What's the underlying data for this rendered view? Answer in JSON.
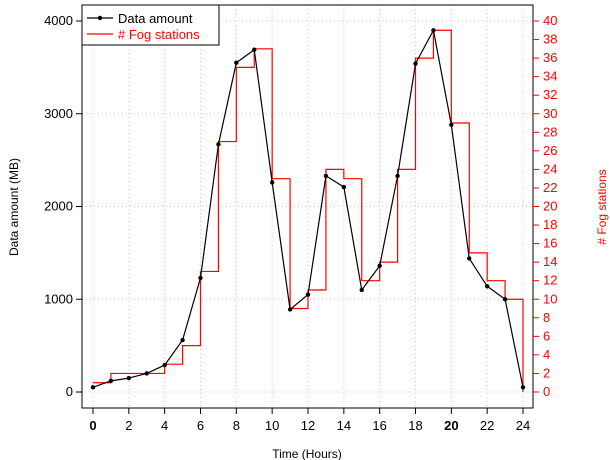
{
  "chart_data": {
    "type": "line",
    "xlabel": "Time (Hours)",
    "ylabel": "Data amount (MB)",
    "y2label": "# Fog stations",
    "xlim": [
      0,
      24
    ],
    "ylim": [
      0,
      4000
    ],
    "y2lim": [
      0,
      40
    ],
    "x_ticks": [
      "0",
      "2",
      "4",
      "6",
      "8",
      "10",
      "12",
      "14",
      "16",
      "18",
      "20",
      "22",
      "24"
    ],
    "x_ticks_bold": [
      "0",
      "20"
    ],
    "y_ticks": [
      "0",
      "1000",
      "2000",
      "3000",
      "4000"
    ],
    "y2_ticks": [
      "0",
      "2",
      "4",
      "6",
      "8",
      "10",
      "12",
      "14",
      "16",
      "18",
      "20",
      "22",
      "24",
      "26",
      "28",
      "30",
      "32",
      "34",
      "36",
      "38",
      "40"
    ],
    "grid": true,
    "legend_position": "top-left",
    "colors": {
      "data_amount": "#000000",
      "fog_stations": "#ff0000",
      "grid": "#c8c8c8"
    },
    "series": [
      {
        "name": "Data amount",
        "axis": "left",
        "style": "line-with-points",
        "x": [
          0,
          1,
          2,
          3,
          4,
          5,
          6,
          7,
          8,
          9,
          10,
          11,
          12,
          13,
          14,
          15,
          16,
          17,
          18,
          19,
          20,
          21,
          22,
          23,
          24
        ],
        "values": [
          50,
          120,
          150,
          200,
          290,
          560,
          1230,
          2670,
          3550,
          3690,
          2260,
          890,
          1050,
          2330,
          2210,
          1100,
          1360,
          2330,
          3540,
          3900,
          2880,
          1440,
          1140,
          1000,
          50
        ]
      },
      {
        "name": "# Fog stations",
        "axis": "right",
        "style": "step",
        "x_start": [
          0,
          1,
          2,
          3,
          4,
          5,
          6,
          7,
          8,
          9,
          10,
          11,
          12,
          13,
          14,
          15,
          16,
          17,
          18,
          19,
          20,
          21,
          22,
          23
        ],
        "values": [
          1,
          2,
          2,
          2,
          3,
          5,
          13,
          27,
          35,
          37,
          23,
          9,
          11,
          24,
          23,
          12,
          14,
          24,
          36,
          39,
          29,
          15,
          12,
          10
        ],
        "end_value": 0
      }
    ]
  }
}
